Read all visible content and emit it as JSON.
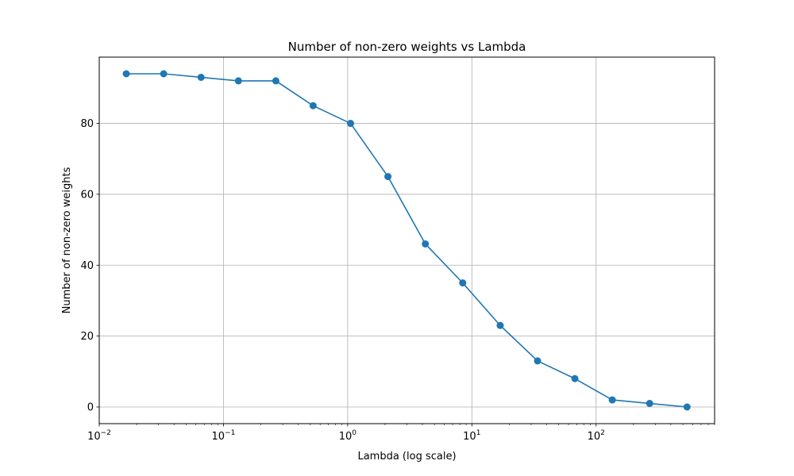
{
  "chart_data": {
    "type": "line",
    "title": "Number of non-zero weights vs Lambda",
    "xlabel": "Lambda (log scale)",
    "ylabel": "Number of non-zero weights",
    "xscale": "log",
    "xlim": [
      0.01,
      900
    ],
    "ylim": [
      -4.7,
      98.7
    ],
    "grid": true,
    "x_tick_values": [
      0.01,
      0.1,
      1,
      10,
      100
    ],
    "x_tick_labels": [
      {
        "base": "10",
        "exp": "−2"
      },
      {
        "base": "10",
        "exp": "−1"
      },
      {
        "base": "10",
        "exp": "0"
      },
      {
        "base": "10",
        "exp": "1"
      },
      {
        "base": "10",
        "exp": "2"
      }
    ],
    "y_ticks": [
      0,
      20,
      40,
      60,
      80
    ],
    "series": [
      {
        "color": "#1f77b4",
        "marker": "circle",
        "x": [
          0.0165,
          0.033,
          0.066,
          0.132,
          0.264,
          0.527,
          1.055,
          2.11,
          4.22,
          8.44,
          16.9,
          33.8,
          67.5,
          135,
          270,
          540
        ],
        "y": [
          94,
          94,
          93,
          92,
          92,
          85,
          80,
          65,
          46,
          35,
          23,
          13,
          8,
          2,
          1,
          0
        ]
      }
    ]
  }
}
